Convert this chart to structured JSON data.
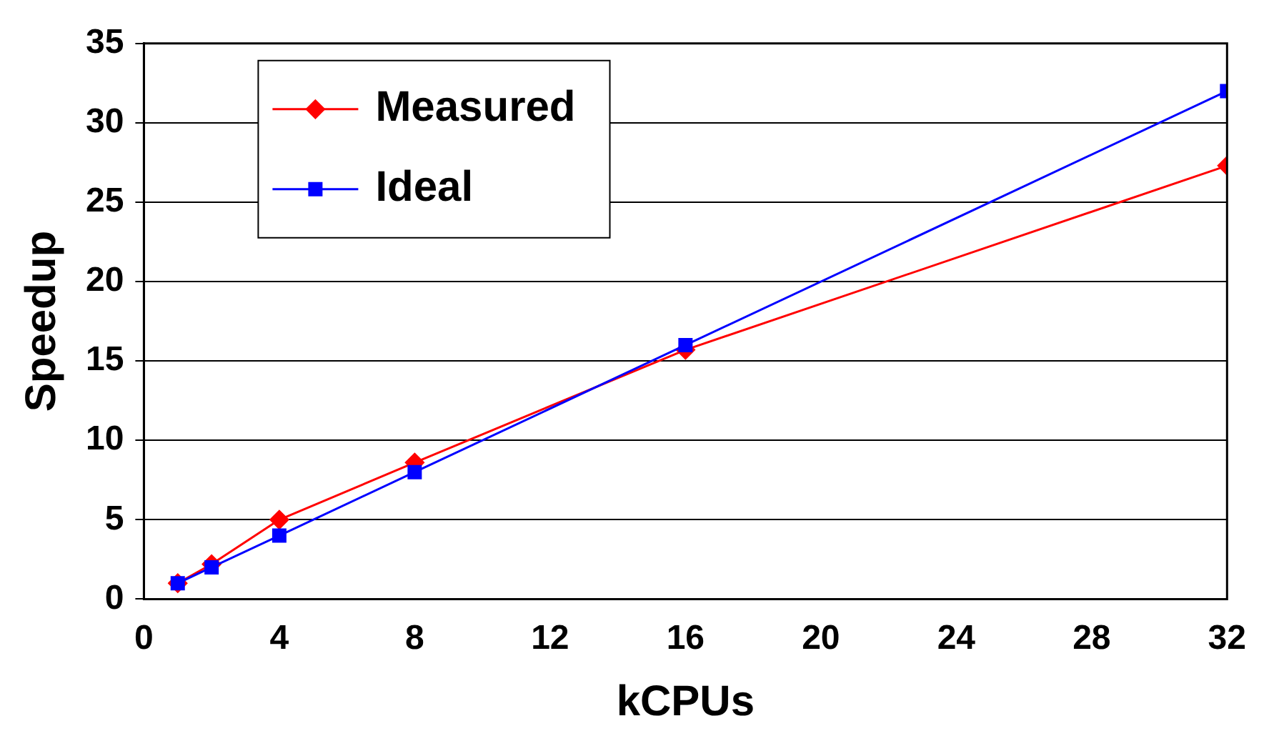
{
  "chart_data": {
    "type": "line",
    "xlabel": "kCPUs",
    "ylabel": "Speedup",
    "x": [
      1,
      2,
      4,
      8,
      16,
      32
    ],
    "series": [
      {
        "name": "Measured",
        "color": "#ff0000",
        "marker": "diamond",
        "values": [
          1.0,
          2.2,
          5.0,
          8.6,
          15.7,
          27.3
        ]
      },
      {
        "name": "Ideal",
        "color": "#0000ff",
        "marker": "square",
        "values": [
          1,
          2,
          4,
          8,
          16,
          32
        ]
      }
    ],
    "xlim": [
      0,
      32
    ],
    "xticks": [
      0,
      4,
      8,
      12,
      16,
      20,
      24,
      28,
      32
    ],
    "ylim": [
      0,
      35
    ],
    "yticks": [
      0,
      5,
      10,
      15,
      20,
      25,
      30,
      35
    ],
    "grid": "y",
    "legend": "top left",
    "line_style": "solid"
  }
}
